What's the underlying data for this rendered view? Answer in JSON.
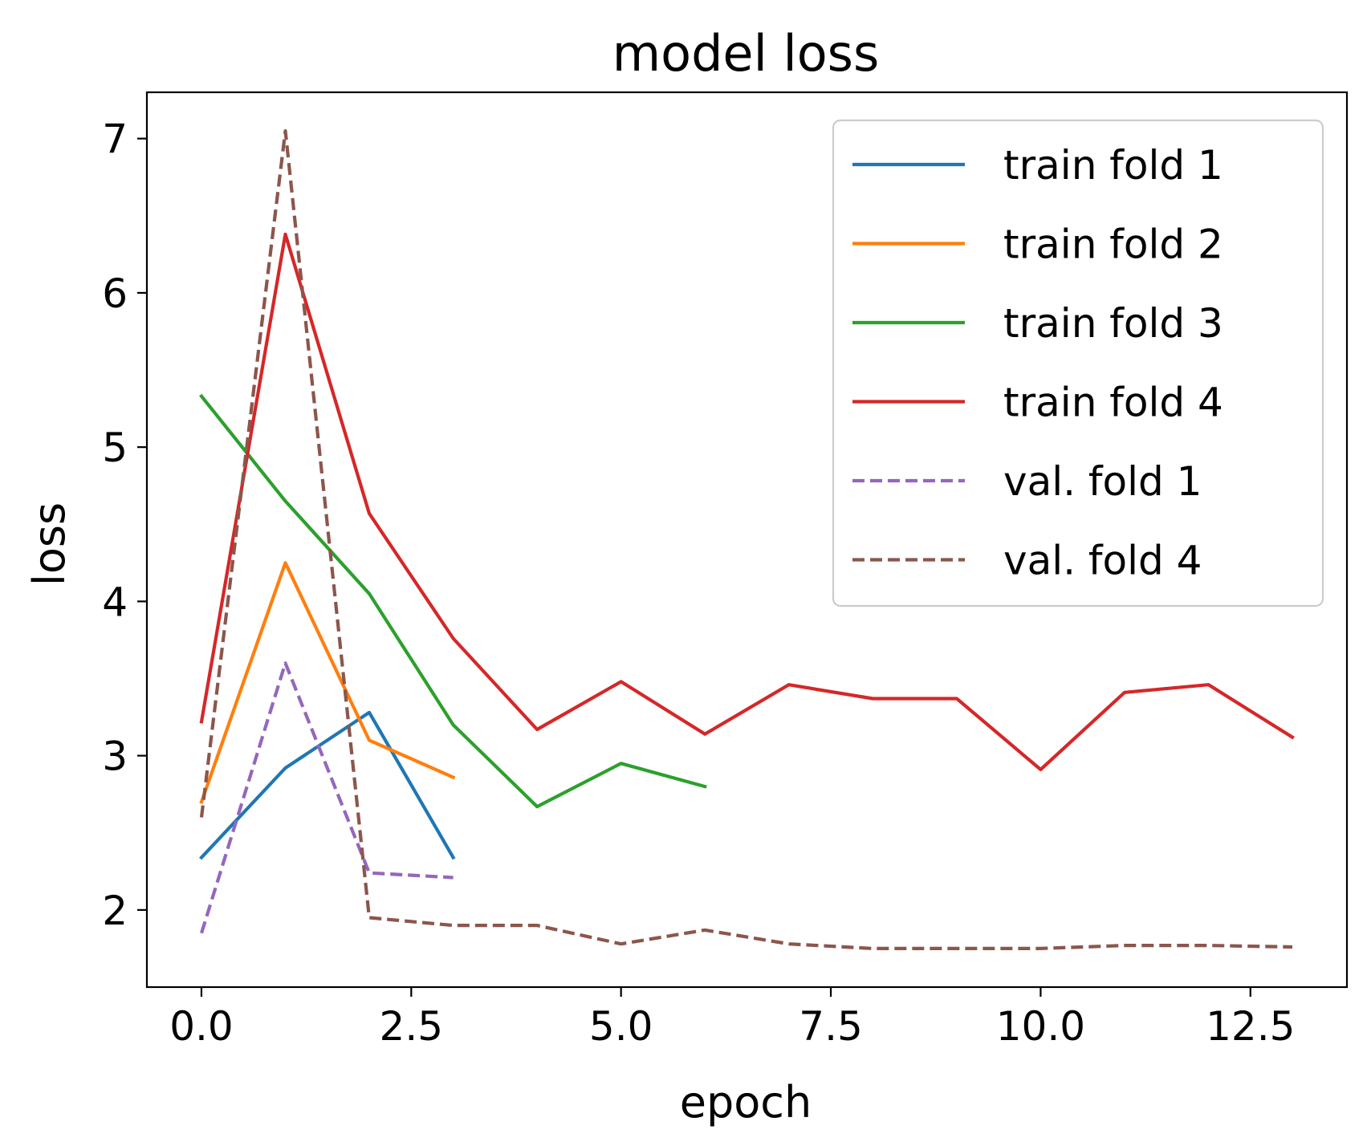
{
  "chart_data": {
    "type": "line",
    "title": "model loss",
    "xlabel": "epoch",
    "ylabel": "loss",
    "xlim": [
      -0.65,
      13.65
    ],
    "ylim": [
      1.5,
      7.3
    ],
    "xticks": [
      0,
      2.5,
      5,
      7.5,
      10,
      12.5
    ],
    "xtick_labels": [
      "0.0",
      "2.5",
      "5.0",
      "7.5",
      "10.0",
      "12.5"
    ],
    "yticks": [
      2,
      3,
      4,
      5,
      6,
      7
    ],
    "ytick_labels": [
      "2",
      "3",
      "4",
      "5",
      "6",
      "7"
    ],
    "grid": false,
    "legend_position": "top-right",
    "series": [
      {
        "name": "train fold 1",
        "color": "#1f77b4",
        "dashed": false,
        "x": [
          0,
          1,
          2,
          3
        ],
        "y": [
          2.34,
          2.92,
          3.28,
          2.34
        ]
      },
      {
        "name": "train fold 2",
        "color": "#ff7f0e",
        "dashed": false,
        "x": [
          0,
          1,
          2,
          3
        ],
        "y": [
          2.7,
          4.25,
          3.1,
          2.86
        ]
      },
      {
        "name": "train fold 3",
        "color": "#2ca02c",
        "dashed": false,
        "x": [
          0,
          1,
          2,
          3,
          4,
          5,
          6
        ],
        "y": [
          5.33,
          4.65,
          4.05,
          3.2,
          2.67,
          2.95,
          2.8
        ]
      },
      {
        "name": "train fold 4",
        "color": "#d62728",
        "dashed": false,
        "x": [
          0,
          1,
          2,
          3,
          4,
          5,
          6,
          7,
          8,
          9,
          10,
          11,
          12,
          13
        ],
        "y": [
          3.22,
          6.38,
          4.57,
          3.76,
          3.17,
          3.48,
          3.14,
          3.46,
          3.37,
          3.37,
          2.91,
          3.41,
          3.46,
          3.12
        ]
      },
      {
        "name": "val. fold 1",
        "color": "#9467bd",
        "dashed": true,
        "x": [
          0,
          1,
          2,
          3
        ],
        "y": [
          1.85,
          3.6,
          2.24,
          2.21
        ]
      },
      {
        "name": "val. fold 4",
        "color": "#8c564b",
        "dashed": true,
        "x": [
          0,
          1,
          2,
          3,
          4,
          5,
          6,
          7,
          8,
          9,
          10,
          11,
          12,
          13
        ],
        "y": [
          2.6,
          7.05,
          1.95,
          1.9,
          1.9,
          1.78,
          1.87,
          1.78,
          1.75,
          1.75,
          1.75,
          1.77,
          1.77,
          1.76
        ]
      }
    ]
  }
}
